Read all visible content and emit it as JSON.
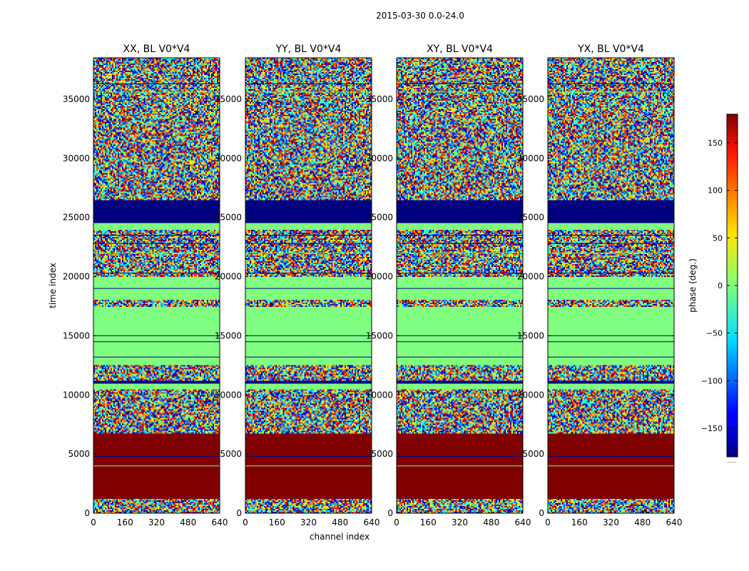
{
  "chart_data": {
    "type": "heatmap",
    "suptitle": "2015-03-30 0.0-24.0",
    "xlabel": "channel index",
    "ylabel": "time index",
    "xlim": [
      0,
      640
    ],
    "ylim": [
      0,
      38500
    ],
    "x_ticks": [
      0,
      160,
      320,
      480,
      640
    ],
    "y_ticks": [
      0,
      5000,
      10000,
      15000,
      20000,
      25000,
      30000,
      35000
    ],
    "x_tick_labels": [
      "0",
      "160",
      "320",
      "480",
      "640"
    ],
    "y_tick_labels": [
      "0",
      "5000",
      "10000",
      "15000",
      "20000",
      "25000",
      "30000",
      "35000"
    ],
    "panels": [
      {
        "title": "XX, BL V0*V4"
      },
      {
        "title": "YY, BL V0*V4"
      },
      {
        "title": "XY, BL V0*V4"
      },
      {
        "title": "YX, BL V0*V4"
      }
    ],
    "colorbar": {
      "label": "phase (deg.)",
      "range": [
        -180,
        180
      ],
      "ticks": [
        150,
        100,
        50,
        0,
        -50,
        -100,
        -150
      ],
      "tick_labels": [
        "150",
        "100",
        "50",
        "0",
        "−50",
        "−100",
        "−150"
      ],
      "colormap": "jet",
      "footer": "......"
    },
    "time_bands": [
      {
        "from": 0,
        "to": 1200,
        "state": "noise"
      },
      {
        "from": 1200,
        "to": 6700,
        "phase": 180
      },
      {
        "from": 6700,
        "to": 7200,
        "state": "noise"
      },
      {
        "from": 7200,
        "to": 10500,
        "state": "noise"
      },
      {
        "from": 10500,
        "to": 10900,
        "phase": 0
      },
      {
        "from": 10900,
        "to": 11200,
        "phase": -180
      },
      {
        "from": 11200,
        "to": 12500,
        "state": "noise"
      },
      {
        "from": 12500,
        "to": 16500,
        "phase": 0
      },
      {
        "from": 16500,
        "to": 17500,
        "phase": 0
      },
      {
        "from": 17500,
        "to": 18000,
        "state": "noise"
      },
      {
        "from": 18000,
        "to": 20000,
        "phase": 0
      },
      {
        "from": 20000,
        "to": 24000,
        "state": "noise"
      },
      {
        "from": 24000,
        "to": 24600,
        "phase": 0
      },
      {
        "from": 24600,
        "to": 26500,
        "phase": -180
      },
      {
        "from": 26500,
        "to": 27200,
        "state": "noise"
      },
      {
        "from": 27200,
        "to": 38500,
        "state": "noise"
      }
    ]
  }
}
